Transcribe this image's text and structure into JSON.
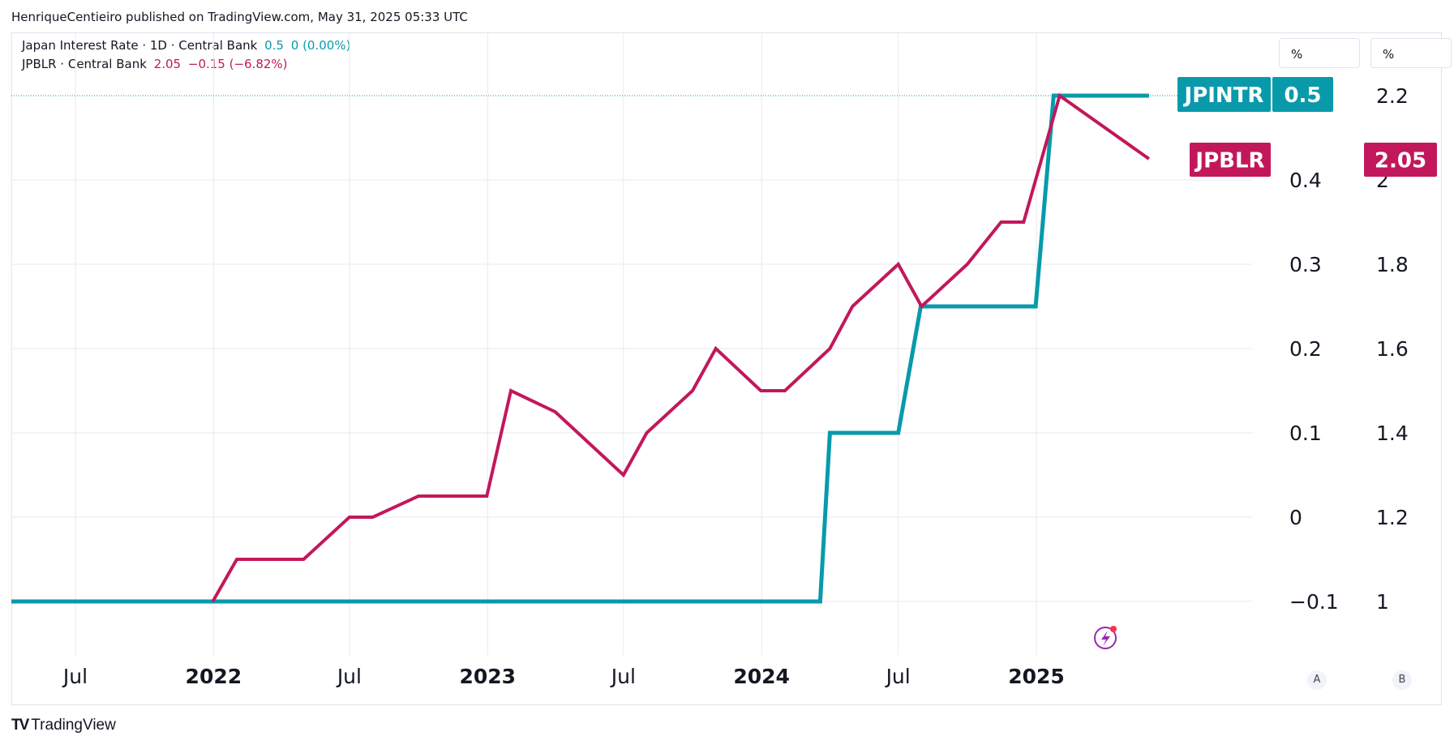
{
  "attribution": "HenriqueCentieiro published on TradingView.com, May 31, 2025 05:33 UTC",
  "legend": [
    {
      "name": "Japan Interest Rate · 1D · Central Bank",
      "value": "0.5",
      "change": "0 (0.00%)",
      "color": "#089aab"
    },
    {
      "name": "JPBLR · Central Bank",
      "value": "2.05",
      "change": "−0.15 (−6.82%)",
      "color": "#c2185b"
    }
  ],
  "scales": {
    "left_unit": "%",
    "right_unit": "%",
    "left_ticks": [
      "0.4",
      "0.3",
      "0.2",
      "0.1",
      "0",
      "−0.1"
    ],
    "right_ticks": [
      "2.2",
      "2",
      "1.8",
      "1.6",
      "1.4",
      "1.2",
      "1"
    ],
    "scale_buttons": [
      "A",
      "B"
    ]
  },
  "x_ticks": [
    {
      "label": "Jul",
      "bold": false
    },
    {
      "label": "2022",
      "bold": true
    },
    {
      "label": "Jul",
      "bold": false
    },
    {
      "label": "2023",
      "bold": true
    },
    {
      "label": "Jul",
      "bold": false
    },
    {
      "label": "2024",
      "bold": true
    },
    {
      "label": "Jul",
      "bold": false
    },
    {
      "label": "2025",
      "bold": true
    }
  ],
  "badges": {
    "jpintr_name": "JPINTR",
    "jpintr_value": "0.5",
    "jpblr_name": "JPBLR",
    "jpblr_value": "2.05"
  },
  "footer": {
    "brand": "TradingView"
  },
  "chart_data": {
    "type": "line",
    "x_axis": "date",
    "series": [
      {
        "name": "Japan Interest Rate",
        "axis": "left",
        "color": "#089aab",
        "points": [
          [
            "2021-03-01",
            -0.1
          ],
          [
            "2024-03-19",
            -0.1
          ],
          [
            "2024-04-01",
            0.1
          ],
          [
            "2024-07-01",
            0.1
          ],
          [
            "2024-07-31",
            0.25
          ],
          [
            "2024-12-31",
            0.25
          ],
          [
            "2025-01-24",
            0.5
          ],
          [
            "2025-05-31",
            0.5
          ]
        ]
      },
      {
        "name": "JPBLR",
        "axis": "right",
        "color": "#c2185b",
        "points": [
          [
            "2021-12-31",
            1.0
          ],
          [
            "2022-02-01",
            1.1
          ],
          [
            "2022-05-01",
            1.1
          ],
          [
            "2022-07-01",
            1.2
          ],
          [
            "2022-08-01",
            1.2
          ],
          [
            "2022-10-01",
            1.25
          ],
          [
            "2022-12-31",
            1.25
          ],
          [
            "2023-02-01",
            1.5
          ],
          [
            "2023-04-01",
            1.45
          ],
          [
            "2023-07-01",
            1.3
          ],
          [
            "2023-08-01",
            1.4
          ],
          [
            "2023-10-01",
            1.5
          ],
          [
            "2023-11-01",
            1.6
          ],
          [
            "2023-12-31",
            1.5
          ],
          [
            "2024-02-01",
            1.5
          ],
          [
            "2024-04-01",
            1.6
          ],
          [
            "2024-05-01",
            1.7
          ],
          [
            "2024-07-01",
            1.8
          ],
          [
            "2024-08-01",
            1.7
          ],
          [
            "2024-10-01",
            1.8
          ],
          [
            "2024-11-15",
            1.9
          ],
          [
            "2024-12-15",
            1.9
          ],
          [
            "2025-02-01",
            2.2
          ],
          [
            "2025-05-31",
            2.05
          ]
        ]
      }
    ],
    "left_ylim": [
      -0.15,
      0.5
    ],
    "right_ylim": [
      0.9,
      2.2
    ],
    "xlim": [
      "2021-04-01",
      "2025-05-31"
    ],
    "grid": true
  }
}
